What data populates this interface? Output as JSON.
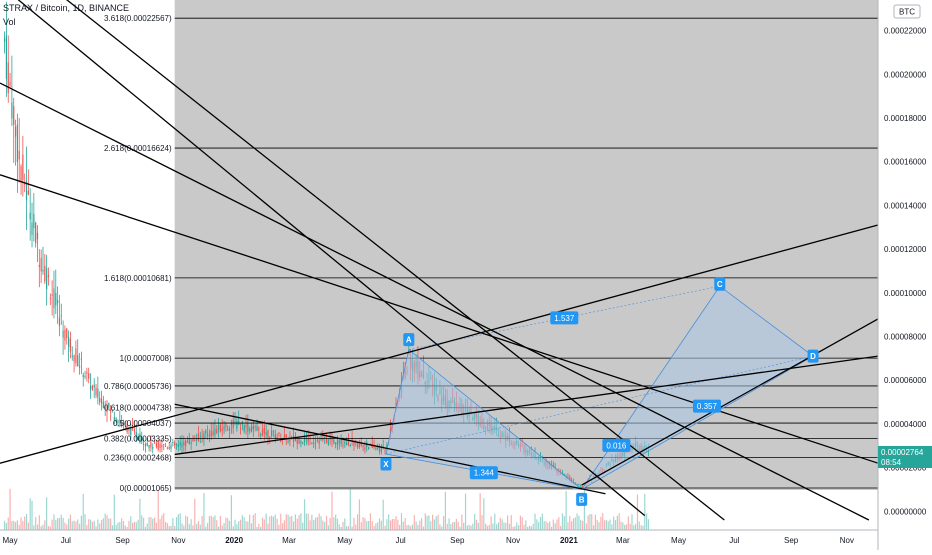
{
  "header": {
    "title": "STRAX / Bitcoin, 1D, BINANCE",
    "indicator": "Vol",
    "currency_badge": "BTC"
  },
  "last_price": {
    "value": "0.00002764",
    "countdown": "08:54"
  },
  "colors": {
    "background_grid": "#ffffff",
    "shaded_area": "#c9c9c9",
    "candle_up": "#26a69a",
    "candle_down": "#ef5350",
    "pattern_fill": "#a9c6e3",
    "pattern_stroke": "#4a90d9",
    "label_bg": "#2196f3",
    "trendline": "#000000",
    "price_tag": "#26a69a"
  },
  "chart_data": {
    "type": "line",
    "symbol": "STRAX / Bitcoin, 1D, BINANCE",
    "yaxis": {
      "ticks": [
        "0.00022000",
        "0.00020000",
        "0.00018000",
        "0.00016000",
        "0.00014000",
        "0.00012000",
        "0.00010000",
        "0.00008000",
        "0.00006000",
        "0.00004000",
        "0.00002000",
        "0.00000000"
      ],
      "range": [
        -4e-06,
        0.000234
      ]
    },
    "xaxis": {
      "ticks": [
        "May",
        "Jul",
        "Sep",
        "Nov",
        "2020",
        "Mar",
        "May",
        "Jul",
        "Sep",
        "Nov",
        "2021",
        "Mar",
        "May",
        "Jul",
        "Sep",
        "Nov"
      ]
    },
    "fib_levels": [
      {
        "label": "3.618(0.00022567)",
        "value": 0.00022567
      },
      {
        "label": "2.618(0.00016624)",
        "value": 0.00016624
      },
      {
        "label": "1.618(0.00010681)",
        "value": 0.00010681
      },
      {
        "label": "1(0.00007008)",
        "value": 7.008e-05
      },
      {
        "label": "0.786(0.00005736)",
        "value": 5.736e-05
      },
      {
        "label": "0.618(0.00004738)",
        "value": 4.738e-05
      },
      {
        "label": "0.5(0.00004037)",
        "value": 4.037e-05
      },
      {
        "label": "0.382(0.00003335)",
        "value": 3.335e-05
      },
      {
        "label": "0.236(0.00002468)",
        "value": 2.468e-05
      },
      {
        "label": "0(0.00001065)",
        "value": 1.065e-05
      }
    ],
    "harmonic_points": [
      {
        "label": "X",
        "date": "2020-06-15",
        "value": 2.62e-05
      },
      {
        "label": "A",
        "date": "2020-07-10",
        "value": 7.4e-05
      },
      {
        "label": "B",
        "date": "2021-01-15",
        "value": 1e-05
      },
      {
        "label": "C",
        "date": "2021-06-15",
        "value": 0.000103
      },
      {
        "label": "D",
        "date": "2021-09-25",
        "value": 7.1e-05
      }
    ],
    "ratios": [
      "1.344",
      "1.537",
      "0.016",
      "0.357"
    ],
    "approx_price_series": [
      {
        "date": "2019-04-25",
        "value": 0.000215
      },
      {
        "date": "2019-05-10",
        "value": 0.000165
      },
      {
        "date": "2019-06-01",
        "value": 0.00012
      },
      {
        "date": "2019-07-01",
        "value": 8e-05
      },
      {
        "date": "2019-08-01",
        "value": 5.5e-05
      },
      {
        "date": "2019-09-01",
        "value": 4e-05
      },
      {
        "date": "2019-10-01",
        "value": 3e-05
      },
      {
        "date": "2019-11-01",
        "value": 3e-05
      },
      {
        "date": "2019-12-01",
        "value": 3.5e-05
      },
      {
        "date": "2020-01-01",
        "value": 4e-05
      },
      {
        "date": "2020-03-01",
        "value": 3.3e-05
      },
      {
        "date": "2020-05-01",
        "value": 3.2e-05
      },
      {
        "date": "2020-06-15",
        "value": 2.8e-05
      },
      {
        "date": "2020-07-10",
        "value": 7e-05
      },
      {
        "date": "2020-08-15",
        "value": 5.2e-05
      },
      {
        "date": "2020-10-01",
        "value": 4e-05
      },
      {
        "date": "2020-12-01",
        "value": 2.4e-05
      },
      {
        "date": "2021-01-15",
        "value": 1.1e-05
      },
      {
        "date": "2021-02-15",
        "value": 2.2e-05
      },
      {
        "date": "2021-03-15",
        "value": 3e-05
      },
      {
        "date": "2021-03-30",
        "value": 2.76e-05
      }
    ]
  }
}
